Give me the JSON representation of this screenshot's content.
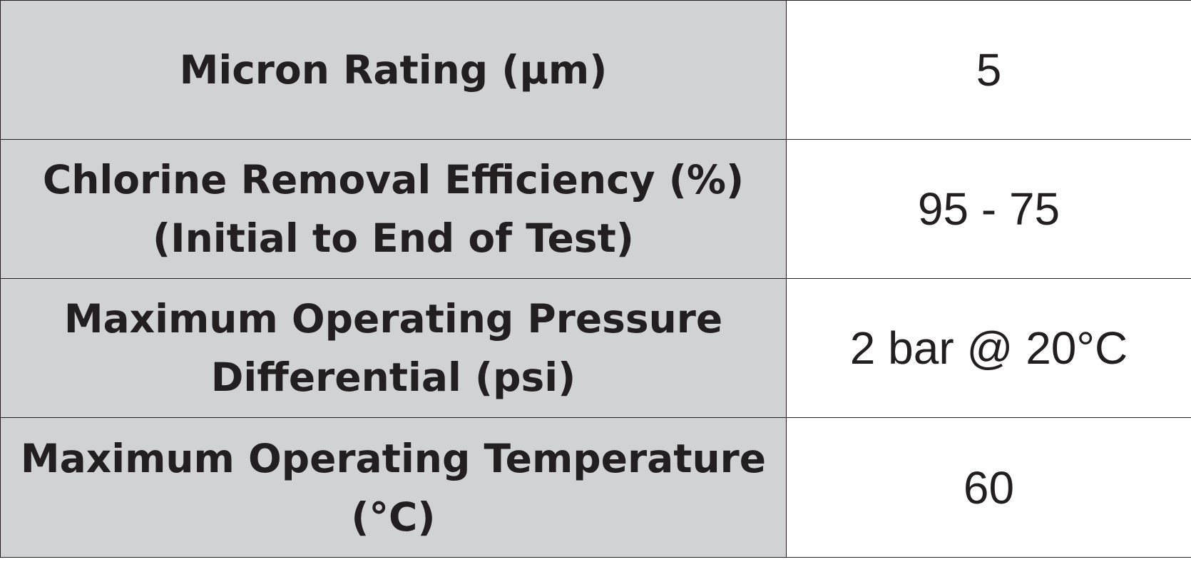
{
  "table": {
    "rows": [
      {
        "label": [
          "Micron Rating (µm)"
        ],
        "value": "5"
      },
      {
        "label": [
          "Chlorine Removal Efficiency (%)",
          "(Initial to End of Test)"
        ],
        "value": "95 - 75"
      },
      {
        "label": [
          "Maximum Operating Pressure",
          "Differential (psi)"
        ],
        "value": "2 bar @ 20°C"
      },
      {
        "label": [
          "Maximum Operating Temperature",
          "(°C)"
        ],
        "value": "60"
      }
    ]
  },
  "colors": {
    "label_background": "#d1d2d4",
    "value_background": "#ffffff",
    "text": "#231f20",
    "border": "#231f20"
  }
}
